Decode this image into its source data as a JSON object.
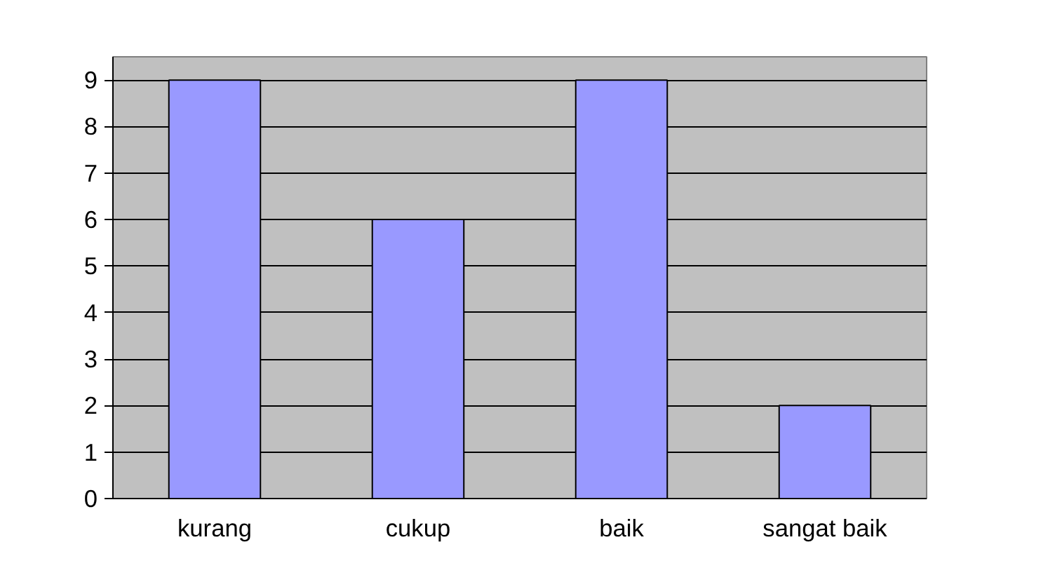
{
  "chart_data": {
    "type": "bar",
    "categories": [
      "kurang",
      "cukup",
      "baik",
      "sangat baik"
    ],
    "values": [
      9,
      6,
      9,
      2
    ],
    "color": "#9999ff",
    "ylim": [
      0,
      9.5
    ],
    "yticks": [
      0,
      1,
      2,
      3,
      4,
      5,
      6,
      7,
      8,
      9
    ],
    "grid": "y"
  }
}
